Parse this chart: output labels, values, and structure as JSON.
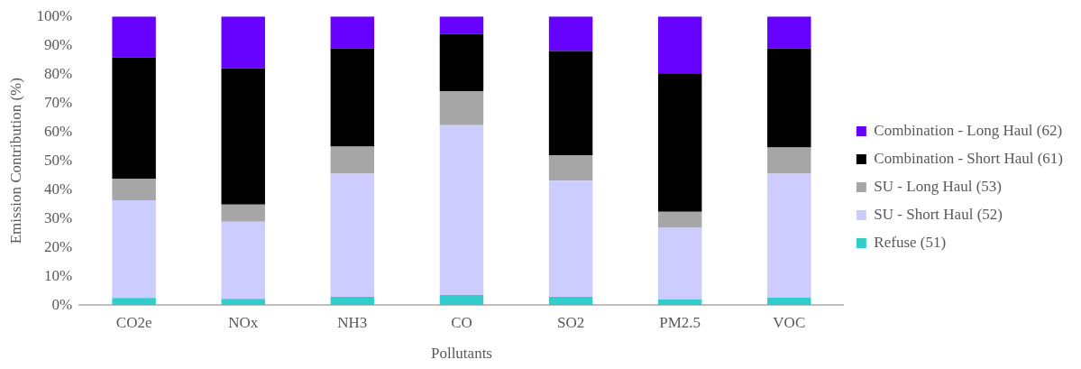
{
  "chart_data": {
    "type": "bar",
    "stacked": true,
    "xlabel": "Pollutants",
    "ylabel": "Emission Contribution (%)",
    "categories": [
      "CO2e",
      "NOx",
      "NH3",
      "CO",
      "SO2",
      "PM2.5",
      "VOC"
    ],
    "series": [
      {
        "name": "Refuse (51)",
        "color": "#33cccc",
        "values": [
          2.5,
          2.2,
          2.9,
          3.5,
          2.9,
          2.0,
          2.6
        ]
      },
      {
        "name": "SU - Short Haul (52)",
        "color": "#ccccff",
        "values": [
          33.8,
          26.7,
          42.6,
          58.8,
          40.2,
          24.8,
          42.9
        ]
      },
      {
        "name": "SU - Long Haul (53)",
        "color": "#a6a6a6",
        "values": [
          7.5,
          5.9,
          9.4,
          11.8,
          8.8,
          5.5,
          9.1
        ]
      },
      {
        "name": "Combination - Short Haul (61)",
        "color": "#000000",
        "values": [
          42.0,
          47.2,
          34.1,
          19.8,
          36.1,
          48.0,
          34.3
        ]
      },
      {
        "name": "Combination - Long Haul (62)",
        "color": "#6600ff",
        "values": [
          14.2,
          18.0,
          11.0,
          6.1,
          12.0,
          19.7,
          11.1
        ]
      }
    ],
    "ylim": [
      0,
      100
    ],
    "yticks": [
      {
        "value": 0,
        "label": "0%"
      },
      {
        "value": 10,
        "label": "10%"
      },
      {
        "value": 20,
        "label": "20%"
      },
      {
        "value": 30,
        "label": "30%"
      },
      {
        "value": 40,
        "label": "40%"
      },
      {
        "value": 50,
        "label": "50%"
      },
      {
        "value": 60,
        "label": "60%"
      },
      {
        "value": 70,
        "label": "70%"
      },
      {
        "value": 80,
        "label": "80%"
      },
      {
        "value": 90,
        "label": "90%"
      },
      {
        "value": 100,
        "label": "100%"
      }
    ],
    "grid": false,
    "legend": "right"
  }
}
